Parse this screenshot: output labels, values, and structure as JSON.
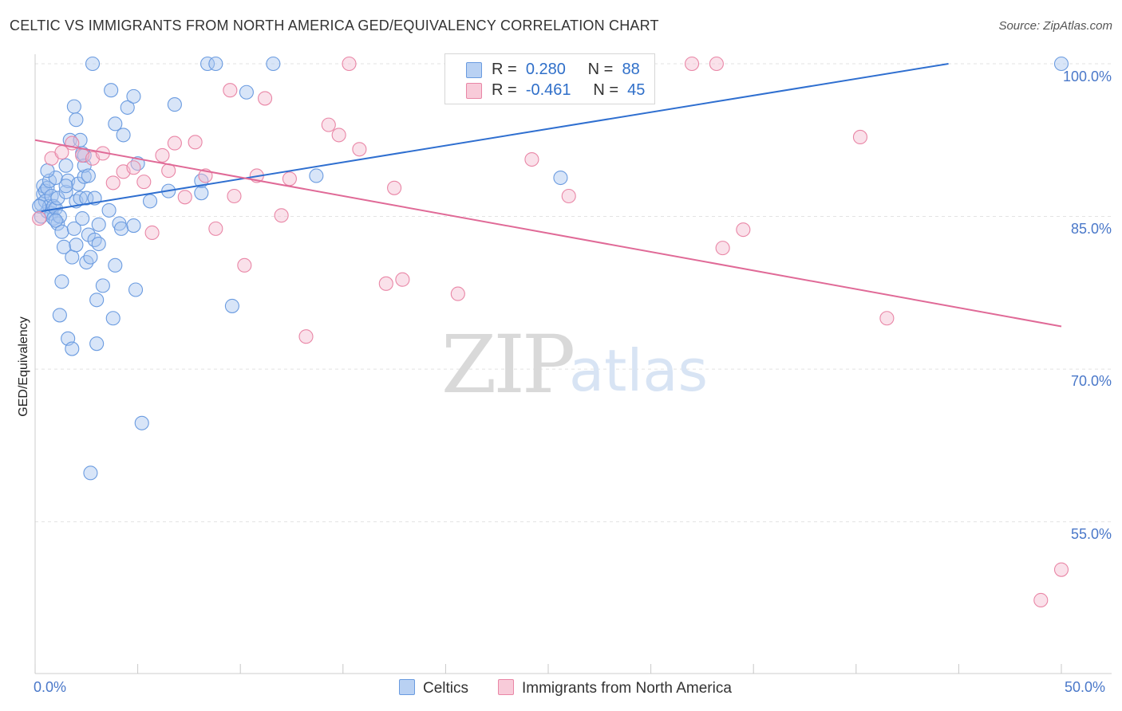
{
  "title": "CELTIC VS IMMIGRANTS FROM NORTH AMERICA GED/EQUIVALENCY CORRELATION CHART",
  "source": "Source: ZipAtlas.com",
  "watermark": {
    "zip": "ZIP",
    "atlas": "atlas"
  },
  "legend": {
    "r_label": "R =",
    "n_label": "N =",
    "series": [
      {
        "r": "0.280",
        "n": "88"
      },
      {
        "r": "-0.461",
        "n": "45"
      }
    ]
  },
  "chart_data": {
    "type": "scatter",
    "title": "CELTIC VS IMMIGRANTS FROM NORTH AMERICA GED/EQUIVALENCY CORRELATION CHART",
    "xlabel": "",
    "ylabel": "GED/Equivalency",
    "xlim": [
      0,
      50
    ],
    "ylim": [
      40,
      102
    ],
    "x_tick_labels": [
      "0.0%",
      "50.0%"
    ],
    "y_ticks": [
      100,
      85,
      70,
      55
    ],
    "y_tick_labels": [
      "100.0%",
      "85.0%",
      "70.0%",
      "55.0%"
    ],
    "grid": true,
    "series": [
      {
        "name": "Celtics",
        "color": "#6a9be0",
        "fill": "#a8c6f0",
        "r": 0.28,
        "n": 88,
        "trend": {
          "x": [
            0.3,
            44.5
          ],
          "y": [
            85.5,
            100
          ]
        },
        "points": [
          [
            0.3,
            85.0
          ],
          [
            0.3,
            86.2
          ],
          [
            0.4,
            87.2
          ],
          [
            0.4,
            88.0
          ],
          [
            0.5,
            87.5
          ],
          [
            0.5,
            86.5
          ],
          [
            0.6,
            85.5
          ],
          [
            0.6,
            87.8
          ],
          [
            0.7,
            86.0
          ],
          [
            0.7,
            88.5
          ],
          [
            0.8,
            85.3
          ],
          [
            0.8,
            87.0
          ],
          [
            0.9,
            84.8
          ],
          [
            0.9,
            86.0
          ],
          [
            1.0,
            85.8
          ],
          [
            1.0,
            88.8
          ],
          [
            1.1,
            84.3
          ],
          [
            1.1,
            86.8
          ],
          [
            1.2,
            85.0
          ],
          [
            1.3,
            83.5
          ],
          [
            1.3,
            78.6
          ],
          [
            1.2,
            75.3
          ],
          [
            1.4,
            82.0
          ],
          [
            1.5,
            87.4
          ],
          [
            1.5,
            90.0
          ],
          [
            1.6,
            73.0
          ],
          [
            1.6,
            88.5
          ],
          [
            1.7,
            92.5
          ],
          [
            1.8,
            81.0
          ],
          [
            1.8,
            72.0
          ],
          [
            1.9,
            83.8
          ],
          [
            1.9,
            95.8
          ],
          [
            2.0,
            86.5
          ],
          [
            2.0,
            82.2
          ],
          [
            2.0,
            94.5
          ],
          [
            2.1,
            88.2
          ],
          [
            2.2,
            86.8
          ],
          [
            2.2,
            92.5
          ],
          [
            2.3,
            84.8
          ],
          [
            2.3,
            91.2
          ],
          [
            2.4,
            88.9
          ],
          [
            2.4,
            90.0
          ],
          [
            2.5,
            80.5
          ],
          [
            2.5,
            86.8
          ],
          [
            2.6,
            83.2
          ],
          [
            2.6,
            89.0
          ],
          [
            2.7,
            59.8
          ],
          [
            2.7,
            81.0
          ],
          [
            2.8,
            100.0
          ],
          [
            2.9,
            86.8
          ],
          [
            2.9,
            82.7
          ],
          [
            3.0,
            72.5
          ],
          [
            3.0,
            76.8
          ],
          [
            3.1,
            84.2
          ],
          [
            3.1,
            82.3
          ],
          [
            3.3,
            78.2
          ],
          [
            3.6,
            85.6
          ],
          [
            3.7,
            97.4
          ],
          [
            3.8,
            75.0
          ],
          [
            3.9,
            80.2
          ],
          [
            3.9,
            94.1
          ],
          [
            4.1,
            84.3
          ],
          [
            4.2,
            83.8
          ],
          [
            4.3,
            93.0
          ],
          [
            4.5,
            95.7
          ],
          [
            4.8,
            84.1
          ],
          [
            4.8,
            96.8
          ],
          [
            4.9,
            77.8
          ],
          [
            5.0,
            90.2
          ],
          [
            5.2,
            64.7
          ],
          [
            5.6,
            86.5
          ],
          [
            6.5,
            87.5
          ],
          [
            6.8,
            96.0
          ],
          [
            8.1,
            87.3
          ],
          [
            8.1,
            88.5
          ],
          [
            8.4,
            100.0
          ],
          [
            8.8,
            100.0
          ],
          [
            9.6,
            76.2
          ],
          [
            10.3,
            97.2
          ],
          [
            11.6,
            100.0
          ],
          [
            13.7,
            89.0
          ],
          [
            2.4,
            91.0
          ],
          [
            0.6,
            89.5
          ],
          [
            1.0,
            84.6
          ],
          [
            1.5,
            88.0
          ],
          [
            25.6,
            88.8
          ],
          [
            50.0,
            100.0
          ],
          [
            0.2,
            86.0
          ]
        ]
      },
      {
        "name": "Immigrants from North America",
        "color": "#e986a6",
        "fill": "#f5bcd0",
        "r": -0.461,
        "n": 45,
        "trend": {
          "x": [
            0,
            50
          ],
          "y": [
            92.5,
            74.2
          ]
        },
        "points": [
          [
            0.2,
            84.8
          ],
          [
            0.8,
            90.7
          ],
          [
            1.3,
            91.3
          ],
          [
            1.8,
            92.2
          ],
          [
            2.3,
            91.0
          ],
          [
            2.8,
            90.7
          ],
          [
            3.3,
            91.2
          ],
          [
            3.8,
            88.3
          ],
          [
            4.3,
            89.4
          ],
          [
            4.8,
            89.8
          ],
          [
            5.3,
            88.4
          ],
          [
            5.7,
            83.4
          ],
          [
            6.2,
            91.0
          ],
          [
            6.8,
            92.2
          ],
          [
            7.3,
            86.9
          ],
          [
            7.8,
            92.3
          ],
          [
            8.3,
            89.0
          ],
          [
            8.8,
            83.8
          ],
          [
            9.5,
            97.4
          ],
          [
            9.7,
            87.0
          ],
          [
            10.2,
            80.2
          ],
          [
            10.8,
            89.0
          ],
          [
            11.2,
            96.6
          ],
          [
            12.0,
            85.1
          ],
          [
            12.4,
            88.7
          ],
          [
            13.2,
            73.2
          ],
          [
            14.3,
            94.0
          ],
          [
            14.8,
            93.0
          ],
          [
            15.3,
            100.0
          ],
          [
            15.8,
            91.6
          ],
          [
            17.1,
            78.4
          ],
          [
            17.5,
            87.8
          ],
          [
            17.9,
            78.8
          ],
          [
            20.6,
            77.4
          ],
          [
            24.2,
            90.6
          ],
          [
            26.0,
            87.0
          ],
          [
            32.0,
            100.0
          ],
          [
            33.2,
            100.0
          ],
          [
            33.5,
            81.9
          ],
          [
            34.5,
            83.7
          ],
          [
            40.2,
            92.8
          ],
          [
            41.5,
            75.0
          ],
          [
            49.0,
            47.3
          ],
          [
            50.0,
            50.3
          ],
          [
            6.5,
            89.5
          ]
        ]
      }
    ]
  },
  "bottom_legend": [
    {
      "label": "Celtics"
    },
    {
      "label": "Immigrants from North America"
    }
  ]
}
